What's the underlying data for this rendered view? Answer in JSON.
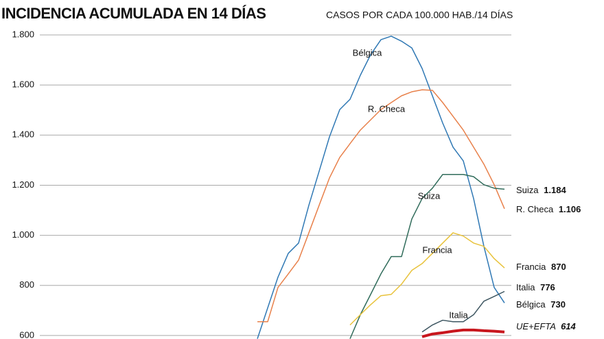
{
  "chart_data": {
    "type": "line",
    "title": "INCIDENCIA ACUMULADA EN 14 DÍAS",
    "subtitle": "CASOS POR CADA 100.000 HAB./14 DÍAS",
    "categories": [
      null,
      null,
      null,
      null,
      null,
      null,
      null,
      null,
      null,
      null,
      null,
      null,
      null,
      null,
      null,
      null,
      null,
      null,
      null,
      null,
      null,
      null,
      null,
      null,
      null
    ],
    "ylim": [
      586,
      1800
    ],
    "yticks": [
      600,
      800,
      {
        "value": 1000,
        "label": "1.000"
      },
      {
        "value": 1200,
        "label": "1.200"
      },
      {
        "value": 1400,
        "label": "1.400"
      },
      {
        "value": 1600,
        "label": "1.600"
      },
      {
        "value": 1800,
        "label": "1.800"
      }
    ],
    "grid": true,
    "series": [
      {
        "name": "Bélgica",
        "color": "#2f78b4",
        "values": [
          587,
          710,
          833,
          928,
          969,
          1120,
          1256,
          1393,
          1502,
          1543,
          1639,
          1721,
          1781,
          1795,
          1775,
          1748,
          1666,
          1557,
          1448,
          1352,
          1297,
          1147,
          956,
          792,
          730
        ],
        "value_labels": [
          null,
          null,
          null,
          null,
          null,
          null,
          null,
          null,
          null,
          null,
          null,
          null,
          null,
          null,
          null,
          null,
          null,
          null,
          null,
          null,
          null,
          null,
          null,
          null,
          "730"
        ]
      },
      {
        "name": "R. Checa",
        "color": "#e8804a",
        "values": [
          655,
          655,
          792,
          846,
          901,
          1010,
          1120,
          1229,
          1311,
          1366,
          1420,
          1461,
          1502,
          1530,
          1557,
          1573,
          1581,
          1579,
          1530,
          1475,
          1420,
          1352,
          1284,
          1202,
          1106
        ],
        "value_labels": [
          null,
          null,
          null,
          null,
          null,
          null,
          null,
          null,
          null,
          null,
          null,
          null,
          null,
          null,
          null,
          null,
          null,
          null,
          null,
          null,
          null,
          null,
          null,
          null,
          "1.106"
        ]
      },
      {
        "name": "Suiza",
        "color": "#2f6b5a",
        "values": [
          null,
          null,
          null,
          null,
          null,
          null,
          null,
          null,
          null,
          587,
          683,
          764,
          846,
          915,
          915,
          1065,
          1147,
          1188,
          1243,
          1243,
          1243,
          1234,
          1202,
          1188,
          1184
        ],
        "value_labels": [
          null,
          null,
          null,
          null,
          null,
          null,
          null,
          null,
          null,
          null,
          null,
          null,
          null,
          null,
          null,
          null,
          null,
          null,
          null,
          null,
          null,
          null,
          null,
          null,
          "1.184"
        ]
      },
      {
        "name": "Francia",
        "color": "#e8c23a",
        "values": [
          null,
          null,
          null,
          null,
          null,
          null,
          null,
          null,
          null,
          642,
          683,
          723,
          759,
          764,
          805,
          860,
          887,
          928,
          969,
          1010,
          997,
          969,
          956,
          907,
          870
        ],
        "value_labels": [
          null,
          null,
          null,
          null,
          null,
          null,
          null,
          null,
          null,
          null,
          null,
          null,
          null,
          null,
          null,
          null,
          null,
          null,
          null,
          null,
          null,
          null,
          null,
          null,
          "870"
        ]
      },
      {
        "name": "Italia",
        "color": "#3d5560",
        "values": [
          null,
          null,
          null,
          null,
          null,
          null,
          null,
          null,
          null,
          null,
          null,
          null,
          null,
          null,
          null,
          null,
          614,
          642,
          661,
          655,
          655,
          683,
          737,
          756,
          776
        ],
        "value_labels": [
          null,
          null,
          null,
          null,
          null,
          null,
          null,
          null,
          null,
          null,
          null,
          null,
          null,
          null,
          null,
          null,
          null,
          null,
          null,
          null,
          null,
          null,
          null,
          null,
          "776"
        ]
      },
      {
        "name": "UE+EFTA",
        "color": "#c8161d",
        "values": [
          null,
          null,
          null,
          null,
          null,
          null,
          null,
          null,
          null,
          null,
          null,
          null,
          null,
          null,
          null,
          null,
          595,
          606,
          611,
          617,
          622,
          622,
          619,
          617,
          614
        ],
        "value_labels": [
          null,
          null,
          null,
          null,
          null,
          null,
          null,
          null,
          null,
          null,
          null,
          null,
          null,
          null,
          null,
          null,
          null,
          null,
          null,
          null,
          null,
          null,
          null,
          null,
          "614"
        ]
      }
    ]
  }
}
